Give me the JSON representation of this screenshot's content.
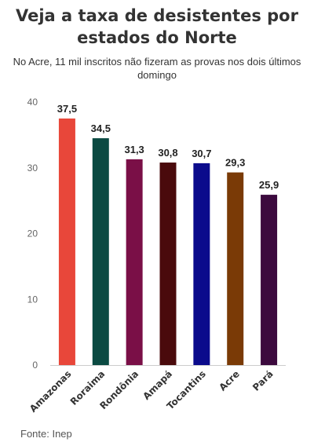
{
  "chart_data": {
    "type": "bar",
    "title": "Veja a taxa de desistentes por estados do Norte",
    "subtitle": "No Acre, 11 mil inscritos não fizeram as provas nos dois últimos domingo",
    "source": "Fonte: Inep",
    "categories": [
      "Amazonas",
      "Roraima",
      "Rondônia",
      "Amapá",
      "Tocantins",
      "Acre",
      "Pará"
    ],
    "values": [
      37.5,
      34.5,
      31.3,
      30.8,
      30.7,
      29.3,
      25.9
    ],
    "value_labels": [
      "37,5",
      "34,5",
      "31,3",
      "30,8",
      "30,7",
      "29,3",
      "25,9"
    ],
    "colors": [
      "#e8473a",
      "#0b4a42",
      "#7a0f47",
      "#4a0a0c",
      "#0b0b8c",
      "#7a3a06",
      "#3c0a3e"
    ],
    "ylim": [
      0,
      40
    ],
    "yticks": [
      0,
      10,
      20,
      30,
      40
    ],
    "xlabel": "",
    "ylabel": "",
    "grid": false,
    "legend": "none"
  }
}
